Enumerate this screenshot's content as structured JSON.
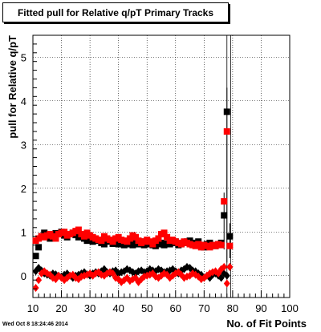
{
  "chart_data": {
    "type": "scatter",
    "title": "Fitted pull for Relative q/pT Primary Tracks",
    "xlabel": "No. of Fit Points",
    "ylabel": "pull for Relative q/pT",
    "xlim": [
      10,
      100
    ],
    "ylim": [
      -0.5,
      5.5
    ],
    "grid": true,
    "x_ticks": [
      "10",
      "20",
      "30",
      "40",
      "50",
      "60",
      "70",
      "80",
      "90",
      "100"
    ],
    "y_ticks": [
      "0",
      "1",
      "2",
      "3",
      "4",
      "5"
    ],
    "series": [
      {
        "color": "#000000",
        "marker": "square",
        "x": [
          11,
          12,
          13,
          14,
          15,
          16,
          17,
          18,
          19,
          20,
          21,
          22,
          23,
          24,
          25,
          26,
          27,
          28,
          29,
          30,
          31,
          32,
          33,
          34,
          35,
          36,
          37,
          38,
          39,
          40,
          41,
          42,
          43,
          44,
          45,
          46,
          47,
          48,
          49,
          50,
          51,
          52,
          53,
          54,
          55,
          56,
          57,
          58,
          59,
          60,
          61,
          62,
          63,
          64,
          65,
          66,
          67,
          68,
          69,
          70,
          71,
          72,
          73,
          74,
          75,
          76,
          77,
          78,
          79
        ],
        "values": [
          0.45,
          0.65,
          0.9,
          0.98,
          0.9,
          0.85,
          0.92,
          0.97,
          0.95,
          1.0,
          0.92,
          0.88,
          0.95,
          0.98,
          0.93,
          0.88,
          0.9,
          0.85,
          0.8,
          0.86,
          0.78,
          0.82,
          0.8,
          0.75,
          0.72,
          0.8,
          0.78,
          0.73,
          0.75,
          0.72,
          0.75,
          0.7,
          0.72,
          0.73,
          0.7,
          0.75,
          0.72,
          0.78,
          0.7,
          0.72,
          0.75,
          0.7,
          0.68,
          0.72,
          0.75,
          0.7,
          0.73,
          0.72,
          0.75,
          0.78,
          0.7,
          0.72,
          0.75,
          0.78,
          0.8,
          0.72,
          0.75,
          0.78,
          0.7,
          0.65,
          0.72,
          0.75,
          0.7,
          0.68,
          0.72,
          0.75,
          1.38,
          3.75,
          0.9
        ]
      },
      {
        "color": "#ff0000",
        "marker": "square",
        "x": [
          11,
          12,
          13,
          14,
          15,
          16,
          17,
          18,
          19,
          20,
          21,
          22,
          23,
          24,
          25,
          26,
          27,
          28,
          29,
          30,
          31,
          32,
          33,
          34,
          35,
          36,
          37,
          38,
          39,
          40,
          41,
          42,
          43,
          44,
          45,
          46,
          47,
          48,
          49,
          50,
          51,
          52,
          53,
          54,
          55,
          56,
          57,
          58,
          59,
          60,
          61,
          62,
          63,
          64,
          65,
          66,
          67,
          68,
          69,
          70,
          71,
          72,
          73,
          74,
          75,
          76,
          77,
          78,
          79
        ],
        "values": [
          0.8,
          0.85,
          0.9,
          0.88,
          0.92,
          0.95,
          0.9,
          0.85,
          0.95,
          0.98,
          1.0,
          0.92,
          0.95,
          0.98,
          1.02,
          1.05,
          0.95,
          0.9,
          0.98,
          0.92,
          0.88,
          0.85,
          0.82,
          0.8,
          0.9,
          0.85,
          0.82,
          0.78,
          0.85,
          0.88,
          0.82,
          0.8,
          0.78,
          0.85,
          0.92,
          0.88,
          0.8,
          0.75,
          0.78,
          0.82,
          0.78,
          0.72,
          0.8,
          0.85,
          0.95,
          0.98,
          0.88,
          0.8,
          0.82,
          0.78,
          0.75,
          0.72,
          0.78,
          0.75,
          0.72,
          0.7,
          0.68,
          0.72,
          0.65,
          0.7,
          0.68,
          0.65,
          0.7,
          0.68,
          0.72,
          0.7,
          1.7,
          3.3,
          0.68
        ]
      },
      {
        "color": "#000000",
        "marker": "diamond",
        "x": [
          11,
          12,
          13,
          14,
          15,
          16,
          17,
          18,
          19,
          20,
          21,
          22,
          23,
          24,
          25,
          26,
          27,
          28,
          29,
          30,
          31,
          32,
          33,
          34,
          35,
          36,
          37,
          38,
          39,
          40,
          41,
          42,
          43,
          44,
          45,
          46,
          47,
          48,
          49,
          50,
          51,
          52,
          53,
          54,
          55,
          56,
          57,
          58,
          59,
          60,
          61,
          62,
          63,
          64,
          65,
          66,
          67,
          68,
          69,
          70,
          71,
          72,
          73,
          74,
          75,
          76,
          77,
          78,
          79
        ],
        "values": [
          0.1,
          0.18,
          0.12,
          0.05,
          0.02,
          0.0,
          0.05,
          0.03,
          0.0,
          -0.02,
          0.02,
          0.05,
          0.0,
          -0.05,
          0.0,
          0.02,
          0.05,
          0.08,
          0.03,
          0.0,
          0.05,
          0.08,
          0.05,
          0.1,
          0.15,
          0.08,
          0.05,
          0.1,
          0.12,
          0.05,
          0.08,
          0.1,
          0.15,
          0.12,
          0.08,
          0.05,
          0.1,
          0.12,
          0.08,
          0.1,
          0.15,
          0.12,
          0.1,
          0.15,
          0.12,
          0.08,
          0.1,
          0.12,
          0.15,
          0.1,
          0.05,
          0.12,
          0.15,
          0.2,
          0.18,
          0.12,
          0.1,
          0.05,
          0.02,
          -0.05,
          0.0,
          -0.05,
          0.02,
          0.05,
          0.0,
          -0.05,
          0.05,
          0.0,
          0.2
        ]
      },
      {
        "color": "#ff0000",
        "marker": "diamond",
        "x": [
          11,
          12,
          13,
          14,
          15,
          16,
          17,
          18,
          19,
          20,
          21,
          22,
          23,
          24,
          25,
          26,
          27,
          28,
          29,
          30,
          31,
          32,
          33,
          34,
          35,
          36,
          37,
          38,
          39,
          40,
          41,
          42,
          43,
          44,
          45,
          46,
          47,
          48,
          49,
          50,
          51,
          52,
          53,
          54,
          55,
          56,
          57,
          58,
          59,
          60,
          61,
          62,
          63,
          64,
          65,
          66,
          67,
          68,
          69,
          70,
          71,
          72,
          73,
          74,
          75,
          76,
          77,
          78,
          79
        ],
        "values": [
          -0.28,
          -0.1,
          0.05,
          0.1,
          0.05,
          0.02,
          -0.05,
          -0.08,
          0.0,
          -0.05,
          -0.1,
          -0.05,
          0.0,
          0.02,
          -0.05,
          -0.08,
          -0.02,
          0.0,
          0.02,
          0.05,
          0.0,
          0.05,
          0.08,
          0.02,
          0.0,
          0.05,
          0.08,
          0.05,
          -0.05,
          -0.08,
          -0.15,
          -0.1,
          -0.05,
          -0.12,
          -0.08,
          -0.05,
          -0.15,
          -0.08,
          -0.02,
          0.0,
          0.02,
          0.05,
          -0.02,
          -0.05,
          0.0,
          0.05,
          0.02,
          -0.05,
          0.0,
          0.05,
          0.08,
          0.02,
          -0.05,
          -0.02,
          0.0,
          0.05,
          0.02,
          -0.02,
          -0.08,
          -0.05,
          0.0,
          0.05,
          0.08,
          0.1,
          0.05,
          0.15,
          0.2,
          -0.18,
          0.2
        ]
      }
    ]
  },
  "footer_text": "Wed Oct  8 18:24:46 2014"
}
